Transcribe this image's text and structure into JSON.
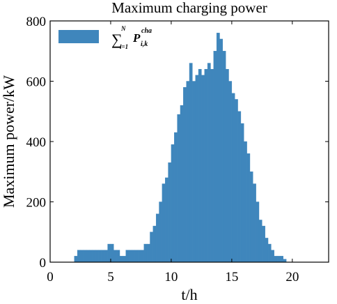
{
  "chart_data": {
    "type": "histogram",
    "title": "Maximum charging power",
    "xlabel": "t/h",
    "ylabel": "Maximum power/kW",
    "legend_label": {
      "sum": "∑",
      "lower": "i=1",
      "upper": "N",
      "symbol": "P",
      "sub": "i,k",
      "sup": "cha"
    },
    "legend_position": "upper left",
    "color": "#3f86bc",
    "bins": [
      2,
      2.25,
      2.5,
      2.75,
      3,
      3.25,
      3.5,
      3.75,
      4,
      4.25,
      4.5,
      4.75,
      5,
      5.25,
      5.5,
      5.75,
      6,
      6.25,
      6.5,
      6.75,
      7,
      7.25,
      7.5,
      7.75,
      8,
      8.25,
      8.5,
      8.75,
      9,
      9.25,
      9.5,
      9.75,
      10,
      10.25,
      10.5,
      10.75,
      11,
      11.25,
      11.5,
      11.75,
      12,
      12.25,
      12.5,
      12.75,
      13,
      13.25,
      13.5,
      13.75,
      14,
      14.25,
      14.5,
      14.75,
      15,
      15.25,
      15.5,
      15.75,
      16,
      16.25,
      16.5,
      16.75,
      17,
      17.25,
      17.5,
      17.75,
      18,
      18.25,
      18.5,
      18.75,
      19,
      19.25,
      19.5
    ],
    "values": [
      20,
      40,
      40,
      40,
      40,
      40,
      40,
      40,
      40,
      40,
      40,
      60,
      60,
      40,
      40,
      20,
      20,
      40,
      40,
      40,
      40,
      40,
      40,
      60,
      60,
      100,
      120,
      160,
      200,
      260,
      280,
      330,
      390,
      430,
      490,
      520,
      580,
      600,
      660,
      600,
      620,
      640,
      620,
      640,
      660,
      640,
      700,
      760,
      740,
      700,
      640,
      600,
      560,
      540,
      500,
      460,
      400,
      360,
      300,
      260,
      200,
      140,
      120,
      80,
      60,
      40,
      20,
      20,
      20,
      10
    ],
    "xlim": [
      0,
      23
    ],
    "ylim": [
      0,
      800
    ],
    "xticks": [
      0,
      5,
      10,
      15,
      20
    ],
    "yticks": [
      0,
      200,
      400,
      600,
      800
    ]
  }
}
